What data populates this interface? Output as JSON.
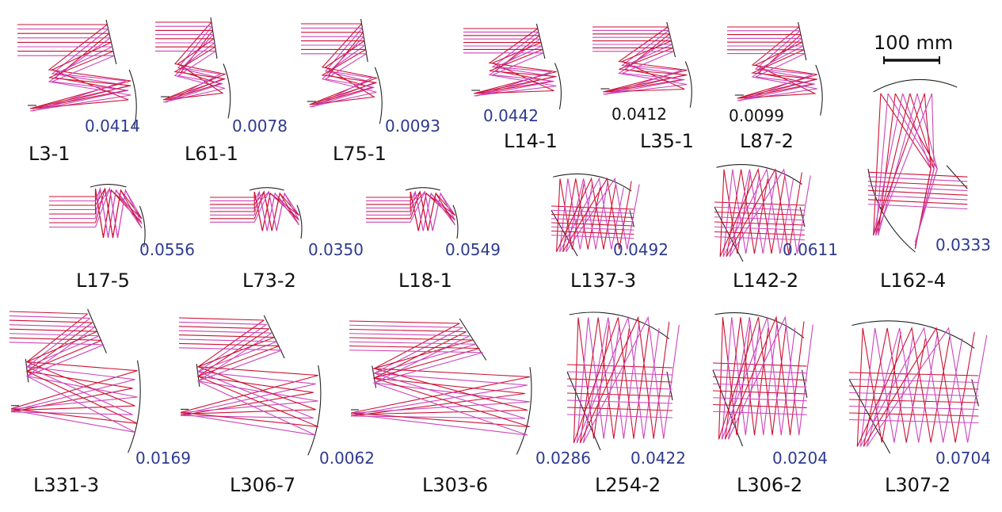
{
  "colors": {
    "ray_red": "#cc1133",
    "ray_magenta": "#cc44bb",
    "mirror": "#222222",
    "value_blue": "#2e3a8f",
    "value_black": "#111111",
    "label": "#111111"
  },
  "scale_bar": {
    "label": "100 mm"
  },
  "designs": [
    {
      "label": "L3-1",
      "value": "0.0414",
      "value_color": "blue"
    },
    {
      "label": "L61-1",
      "value": "0.0078",
      "value_color": "blue"
    },
    {
      "label": "L75-1",
      "value": "0.0093",
      "value_color": "blue"
    },
    {
      "label": "L14-1",
      "value": "0.0442",
      "value_color": "blue"
    },
    {
      "label": "L35-1",
      "value": "0.0412",
      "value_color": "black"
    },
    {
      "label": "L87-2",
      "value": "0.0099",
      "value_color": "black"
    },
    {
      "label": "L17-5",
      "value": "0.0556",
      "value_color": "blue"
    },
    {
      "label": "L73-2",
      "value": "0.0350",
      "value_color": "blue"
    },
    {
      "label": "L18-1",
      "value": "0.0549",
      "value_color": "blue"
    },
    {
      "label": "L137-3",
      "value": "0.0492",
      "value_color": "blue"
    },
    {
      "label": "L142-2",
      "value": "0.0611",
      "value_color": "blue"
    },
    {
      "label": "L162-4",
      "value": "0.0333",
      "value_color": "blue"
    },
    {
      "label": "L331-3",
      "value": "0.0169",
      "value_color": "blue"
    },
    {
      "label": "L306-7",
      "value": "0.0062",
      "value_color": "blue"
    },
    {
      "label": "L303-6",
      "value": "0.0286",
      "value_color": "blue"
    },
    {
      "label": "L254-2",
      "value": "0.0422",
      "value_color": "blue"
    },
    {
      "label": "L306-2",
      "value": "0.0204",
      "value_color": "blue"
    },
    {
      "label": "L307-2",
      "value": "0.0704",
      "value_color": "blue"
    }
  ]
}
